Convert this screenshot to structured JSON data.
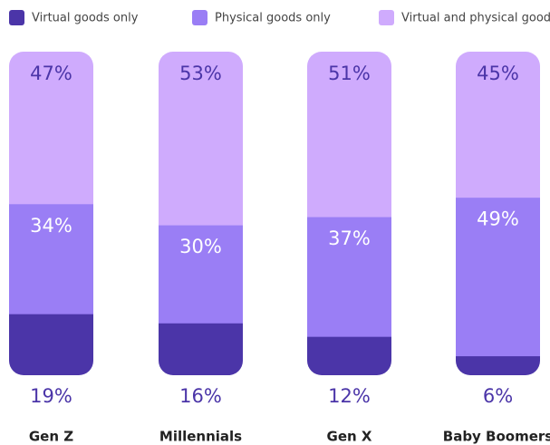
{
  "chart_data": {
    "type": "stacked_bar",
    "categories": [
      "Gen Z",
      "Millennials",
      "Gen X",
      "Baby Boomers"
    ],
    "series": [
      {
        "name": "Virtual goods only",
        "color": "#4b35a8",
        "values": [
          19,
          16,
          12,
          6
        ],
        "value_labels": [
          "19%",
          "16%",
          "12%",
          "6%"
        ]
      },
      {
        "name": "Physical goods only",
        "color": "#9a7ef5",
        "values": [
          34,
          30,
          37,
          49
        ],
        "value_labels": [
          "34%",
          "30%",
          "37%",
          "49%"
        ]
      },
      {
        "name": "Virtual and physical goods",
        "color": "#cfabfd",
        "values": [
          47,
          53,
          51,
          45
        ],
        "value_labels": [
          "47%",
          "53%",
          "51%",
          "45%"
        ]
      }
    ],
    "legend": "top"
  }
}
